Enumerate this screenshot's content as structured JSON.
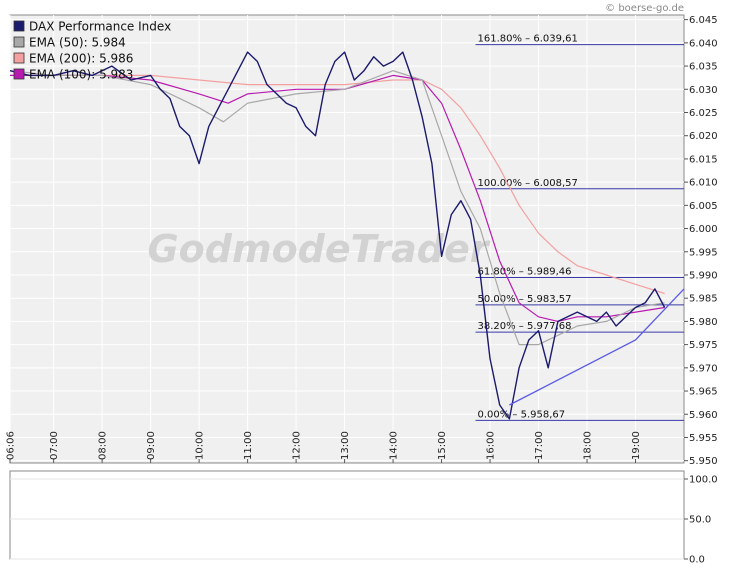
{
  "source": "© boerse-go.de",
  "watermark": "GodmodeTrader",
  "colors": {
    "price": "#1a1a6e",
    "ema50": "#a8a8a8",
    "ema200": "#f4a0a0",
    "ema100": "#b81ab0",
    "fib": "#3a3aa8",
    "trend": "#5a5ae6",
    "plot_bg": "#f0f0f0",
    "grid": "#ffffff"
  },
  "chart_data": [
    {
      "type": "line",
      "legend": [
        {
          "label": "DAX Performance Index",
          "color": "#1a1a6e"
        },
        {
          "label": "EMA (50): 5.984",
          "color": "#a8a8a8"
        },
        {
          "label": "EMA (200): 5.986",
          "color": "#f4a0a0"
        },
        {
          "label": "EMA (100): 5.983",
          "color": "#b81ab0"
        }
      ],
      "legend_position": "top-left",
      "grid": true,
      "x_ticks": [
        "06:06",
        "07:00",
        "08:00",
        "09:00",
        "10:00",
        "11:00",
        "12:00",
        "13:00",
        "14:00",
        "15:00",
        "16:00",
        "17:00",
        "18:00",
        "19:00"
      ],
      "xlim": [
        6.1,
        20.0
      ],
      "ylim": [
        5.9495,
        6.046
      ],
      "y_ticks": [
        "5.950",
        "5.955",
        "5.960",
        "5.965",
        "5.970",
        "5.975",
        "5.980",
        "5.985",
        "5.990",
        "5.995",
        "6.000",
        "6.005",
        "6.010",
        "6.015",
        "6.020",
        "6.025",
        "6.030",
        "6.035",
        "6.040",
        "6.045"
      ],
      "y_tick_values": [
        5.95,
        5.955,
        5.96,
        5.965,
        5.97,
        5.975,
        5.98,
        5.985,
        5.99,
        5.995,
        6.0,
        6.005,
        6.01,
        6.015,
        6.02,
        6.025,
        6.03,
        6.035,
        6.04,
        6.045
      ],
      "series": [
        {
          "name": "DAX Performance Index",
          "x": [
            6.1,
            6.5,
            7.0,
            7.4,
            7.8,
            8.2,
            8.6,
            9.0,
            9.2,
            9.4,
            9.6,
            9.8,
            10.0,
            10.2,
            10.4,
            10.6,
            10.8,
            11.0,
            11.2,
            11.4,
            11.6,
            11.8,
            12.0,
            12.2,
            12.4,
            12.6,
            12.8,
            13.0,
            13.2,
            13.4,
            13.6,
            13.8,
            14.0,
            14.2,
            14.4,
            14.6,
            14.8,
            15.0,
            15.2,
            15.4,
            15.6,
            15.8,
            16.0,
            16.2,
            16.4,
            16.6,
            16.8,
            17.0,
            17.2,
            17.4,
            17.6,
            17.8,
            18.0,
            18.2,
            18.4,
            18.6,
            18.8,
            19.0,
            19.2,
            19.4,
            19.6
          ],
          "y": [
            6.034,
            6.033,
            6.033,
            6.034,
            6.033,
            6.035,
            6.032,
            6.033,
            6.03,
            6.028,
            6.022,
            6.02,
            6.014,
            6.022,
            6.026,
            6.03,
            6.034,
            6.038,
            6.036,
            6.031,
            6.029,
            6.027,
            6.026,
            6.022,
            6.02,
            6.031,
            6.036,
            6.038,
            6.032,
            6.034,
            6.037,
            6.035,
            6.036,
            6.038,
            6.032,
            6.024,
            6.014,
            5.994,
            6.003,
            6.006,
            6.002,
            5.99,
            5.972,
            5.962,
            5.959,
            5.97,
            5.976,
            5.978,
            5.97,
            5.98,
            5.981,
            5.982,
            5.981,
            5.98,
            5.982,
            5.979,
            5.981,
            5.983,
            5.984,
            5.987,
            5.983
          ]
        },
        {
          "name": "EMA (50): 5.984",
          "x": [
            6.1,
            7.0,
            8.0,
            9.0,
            10.0,
            10.5,
            11.0,
            12.0,
            13.0,
            14.0,
            14.6,
            15.0,
            15.4,
            15.8,
            16.2,
            16.6,
            17.0,
            17.4,
            17.8,
            18.4,
            19.0,
            19.6
          ],
          "y": [
            6.034,
            6.033,
            6.033,
            6.031,
            6.026,
            6.023,
            6.027,
            6.029,
            6.03,
            6.034,
            6.032,
            6.02,
            6.008,
            6.0,
            5.986,
            5.975,
            5.975,
            5.977,
            5.979,
            5.98,
            5.983,
            5.984
          ]
        },
        {
          "name": "EMA (200): 5.986",
          "x": [
            6.1,
            8.0,
            9.0,
            10.0,
            11.0,
            12.0,
            13.0,
            14.0,
            14.6,
            15.0,
            15.4,
            15.8,
            16.2,
            16.6,
            17.0,
            17.4,
            17.8,
            18.4,
            19.0,
            19.6
          ],
          "y": [
            6.033,
            6.033,
            6.033,
            6.032,
            6.031,
            6.031,
            6.031,
            6.032,
            6.032,
            6.03,
            6.026,
            6.02,
            6.013,
            6.005,
            5.999,
            5.995,
            5.992,
            5.99,
            5.988,
            5.986
          ]
        },
        {
          "name": "EMA (100): 5.983",
          "x": [
            6.1,
            8.0,
            9.0,
            10.0,
            10.6,
            11.0,
            12.0,
            13.0,
            14.0,
            14.6,
            15.0,
            15.4,
            15.8,
            16.2,
            16.6,
            17.0,
            17.4,
            17.8,
            18.4,
            19.0,
            19.6
          ],
          "y": [
            6.033,
            6.033,
            6.032,
            6.029,
            6.027,
            6.029,
            6.03,
            6.03,
            6.033,
            6.032,
            6.027,
            6.017,
            6.006,
            5.993,
            5.984,
            5.981,
            5.98,
            5.981,
            5.981,
            5.982,
            5.983
          ]
        }
      ],
      "fib_levels": [
        {
          "label": "161.80% – 6.039,61",
          "value": 6.03961
        },
        {
          "label": "100.00% – 6.008,57",
          "value": 6.00857
        },
        {
          "label": "61.80% – 5.989,46",
          "value": 5.98946
        },
        {
          "label": "50.00% – 5.983,57",
          "value": 5.98357
        },
        {
          "label": "38.20% – 5.977,68",
          "value": 5.97768
        },
        {
          "label": "0.00% – 5.958,67",
          "value": 5.95867
        }
      ],
      "fib_x_start": 15.7,
      "trendline": {
        "x": [
          16.4,
          19.0,
          20.0
        ],
        "y": [
          5.962,
          5.976,
          5.987
        ]
      }
    },
    {
      "type": "line",
      "ylim": [
        0,
        110
      ],
      "y_ticks": [
        "100.0",
        "50.0",
        "0.0"
      ],
      "y_tick_values": [
        100,
        50,
        0
      ],
      "grid": true,
      "series": []
    }
  ]
}
